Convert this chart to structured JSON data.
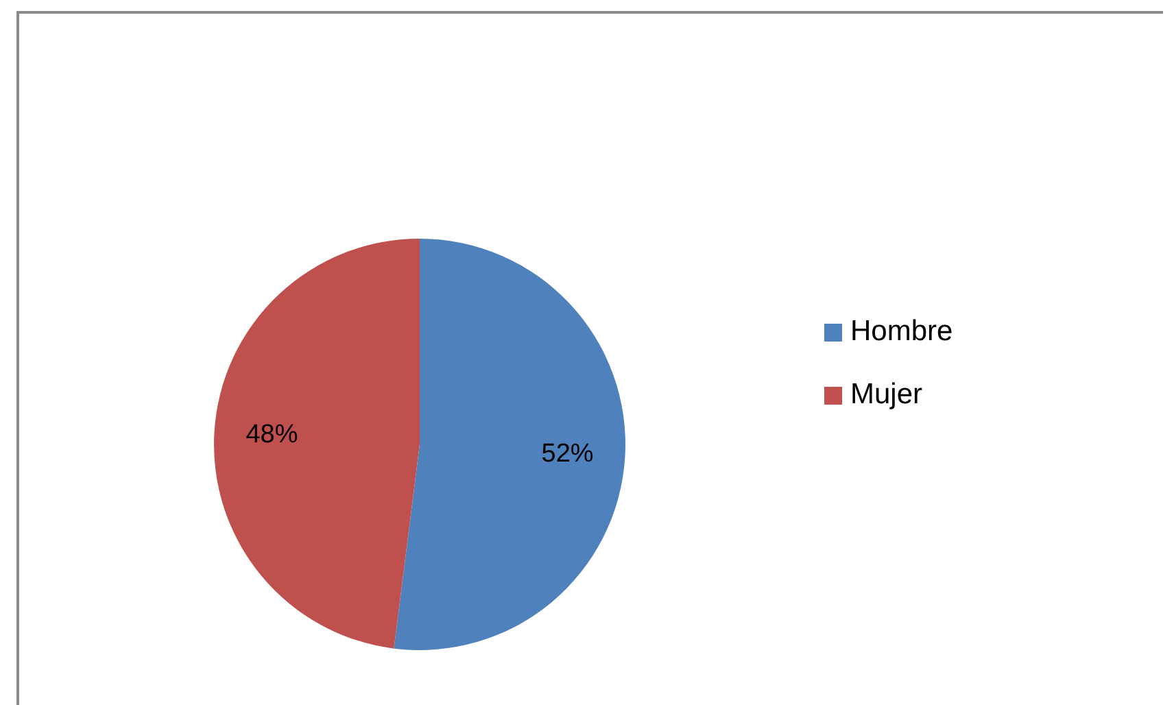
{
  "chart_data": {
    "type": "pie",
    "categories": [
      "Hombre",
      "Mujer"
    ],
    "values": [
      52,
      48
    ],
    "colors": [
      "#4f81bd",
      "#c0504d"
    ],
    "value_labels": [
      "52%",
      "48%"
    ],
    "legend": "right"
  }
}
